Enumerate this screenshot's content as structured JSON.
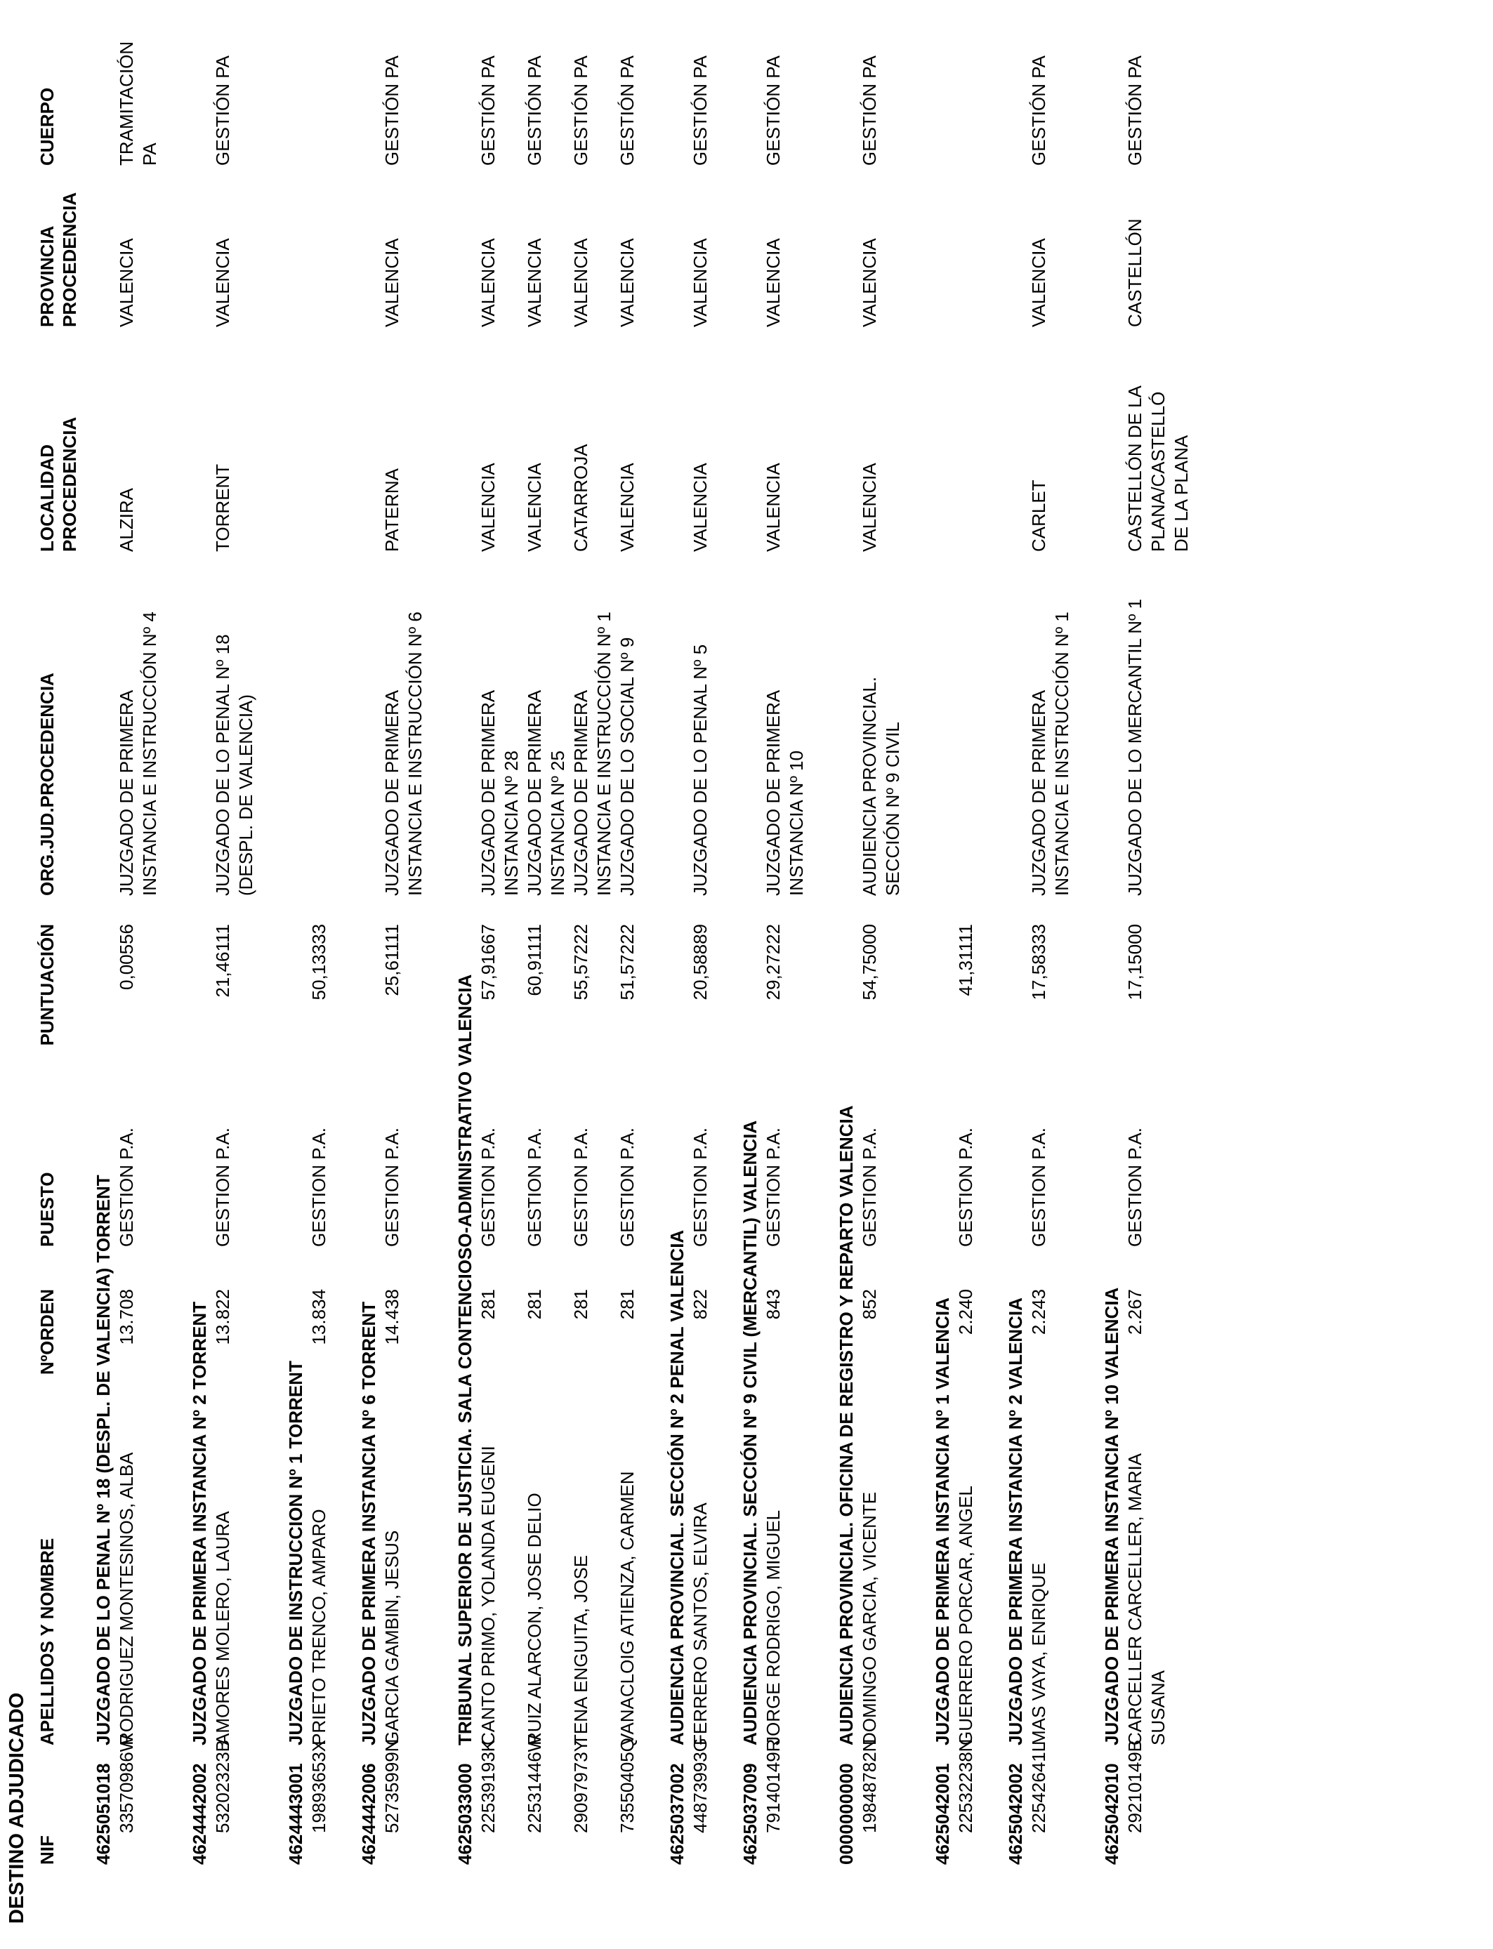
{
  "document": {
    "title": "DESTINO ADJUDICADO",
    "columns": {
      "nif": "NIF",
      "nombre": "APELLIDOS Y NOMBRE",
      "orden": "NºORDEN",
      "puesto": "PUESTO",
      "puntuacion": "PUNTUACIÓN",
      "org": "ORG.JUD.PROCEDENCIA",
      "localidad": "LOCALIDAD\nPROCEDENCIA",
      "provincia": "PROVINCIA\nPROCEDENCIA",
      "cuerpo": "CUERPO"
    },
    "groups": [
      {
        "code": "4625051018",
        "title": "JUZGADO DE LO PENAL Nº 18 (DESPL. DE VALENCIA) TORRENT",
        "rows": [
          {
            "nif": "33570986W",
            "nombre": "RODRIGUEZ MONTESINOS, ALBA",
            "orden": "13.708",
            "puesto": "GESTION P.A.",
            "puntuacion": "0,00556",
            "org": "JUZGADO DE PRIMERA\nINSTANCIA E INSTRUCCIÓN Nº 4",
            "localidad": "ALZIRA",
            "provincia": "VALENCIA",
            "cuerpo": "TRAMITACIÓN\nPA"
          }
        ]
      },
      {
        "code": "4624442002",
        "title": "JUZGADO DE PRIMERA INSTANCIA Nº 2 TORRENT",
        "rows": [
          {
            "nif": "53202323B",
            "nombre": "AMORES MOLERO, LAURA",
            "orden": "13.822",
            "puesto": "GESTION P.A.",
            "puntuacion": "21,46111",
            "org": "JUZGADO DE LO PENAL Nº 18\n(DESPL. DE VALENCIA)",
            "localidad": "TORRENT",
            "provincia": "VALENCIA",
            "cuerpo": "GESTIÓN PA"
          }
        ]
      },
      {
        "code": "4624443001",
        "title": "JUZGADO DE INSTRUCCION Nº 1 TORRENT",
        "rows": [
          {
            "nif": "19893653X",
            "nombre": "PRIETO TRENCO, AMPARO",
            "orden": "13.834",
            "puesto": "GESTION P.A.",
            "puntuacion": "50,13333",
            "org": "",
            "localidad": "",
            "provincia": "",
            "cuerpo": ""
          }
        ]
      },
      {
        "code": "4624442006",
        "title": "JUZGADO DE PRIMERA INSTANCIA Nº 6 TORRENT",
        "rows": [
          {
            "nif": "52735999N",
            "nombre": "GARCIA GAMBIN, JESUS",
            "orden": "14.438",
            "puesto": "GESTION P.A.",
            "puntuacion": "25,61111",
            "org": "JUZGADO DE PRIMERA\nINSTANCIA E INSTRUCCIÓN Nº 6",
            "localidad": "PATERNA",
            "provincia": "VALENCIA",
            "cuerpo": "GESTIÓN PA"
          }
        ]
      },
      {
        "code": "4625033000",
        "title": "TRIBUNAL SUPERIOR DE JUSTICIA. SALA CONTENCIOSO-ADMINISTRATIVO VALENCIA",
        "rows": [
          {
            "nif": "22539193K",
            "nombre": "CANTO PRIMO, YOLANDA EUGENI",
            "orden": "281",
            "puesto": "GESTION P.A.",
            "puntuacion": "57,91667",
            "org": "JUZGADO DE PRIMERA\nINSTANCIA Nº 28",
            "localidad": "VALENCIA",
            "provincia": "VALENCIA",
            "cuerpo": "GESTIÓN PA"
          },
          {
            "nif": "22531446W",
            "nombre": "RUIZ ALARCON, JOSE DELIO",
            "orden": "281",
            "puesto": "GESTION P.A.",
            "puntuacion": "60,91111",
            "org": "JUZGADO DE PRIMERA\nINSTANCIA Nº 25",
            "localidad": "VALENCIA",
            "provincia": "VALENCIA",
            "cuerpo": "GESTIÓN PA"
          },
          {
            "nif": "29097973Y",
            "nombre": "TENA ENGUITA, JOSE",
            "orden": "281",
            "puesto": "GESTION P.A.",
            "puntuacion": "55,57222",
            "org": "JUZGADO DE PRIMERA\nINSTANCIA E INSTRUCCIÓN Nº 1",
            "localidad": "CATARROJA",
            "provincia": "VALENCIA",
            "cuerpo": "GESTIÓN PA"
          },
          {
            "nif": "73550405Q",
            "nombre": "VANACLOIG ATIENZA, CARMEN",
            "orden": "281",
            "puesto": "GESTION P.A.",
            "puntuacion": "51,57222",
            "org": "JUZGADO DE LO SOCIAL Nº 9",
            "localidad": "VALENCIA",
            "provincia": "VALENCIA",
            "cuerpo": "GESTIÓN PA"
          }
        ]
      },
      {
        "code": "4625037002",
        "title": "AUDIENCIA PROVINCIAL. SECCIÓN Nº 2 PENAL VALENCIA",
        "rows": [
          {
            "nif": "44873993G",
            "nombre": "FERRERO SANTOS, ELVIRA",
            "orden": "822",
            "puesto": "GESTION P.A.",
            "puntuacion": "20,58889",
            "org": "JUZGADO DE LO PENAL Nº 5",
            "localidad": "VALENCIA",
            "provincia": "VALENCIA",
            "cuerpo": "GESTIÓN PA"
          }
        ]
      },
      {
        "code": "4625037009",
        "title": "AUDIENCIA PROVINCIAL. SECCIÓN Nº 9 CIVIL (MERCANTIL) VALENCIA",
        "rows": [
          {
            "nif": "79140149R",
            "nombre": "JORGE RODRIGO, MIGUEL",
            "orden": "843",
            "puesto": "GESTION P.A.",
            "puntuacion": "29,27222",
            "org": "JUZGADO DE PRIMERA\nINSTANCIA Nº 10",
            "localidad": "VALENCIA",
            "provincia": "VALENCIA",
            "cuerpo": "GESTIÓN PA"
          }
        ]
      },
      {
        "code": "0000000000",
        "title": "AUDIENCIA PROVINCIAL. OFICINA DE REGISTRO Y REPARTO VALENCIA",
        "rows": [
          {
            "nif": "19848782N",
            "nombre": "DOMINGO GARCIA, VICENTE",
            "orden": "852",
            "puesto": "GESTION P.A.",
            "puntuacion": "54,75000",
            "org": "AUDIENCIA PROVINCIAL.\nSECCIÓN Nº 9 CIVIL",
            "localidad": "VALENCIA",
            "provincia": "VALENCIA",
            "cuerpo": "GESTIÓN PA"
          }
        ]
      },
      {
        "code": "4625042001",
        "title": "JUZGADO DE PRIMERA INSTANCIA Nº 1 VALENCIA",
        "rows": [
          {
            "nif": "22532238N",
            "nombre": "GUERRERO PORCAR, ANGEL",
            "orden": "2.240",
            "puesto": "GESTION P.A.",
            "puntuacion": "41,31111",
            "org": "",
            "localidad": "",
            "provincia": "",
            "cuerpo": ""
          }
        ]
      },
      {
        "code": "4625042002",
        "title": "JUZGADO DE PRIMERA INSTANCIA Nº 2 VALENCIA",
        "rows": [
          {
            "nif": "22542641L",
            "nombre": "MAS VAYA, ENRIQUE",
            "orden": "2.243",
            "puesto": "GESTION P.A.",
            "puntuacion": "17,58333",
            "org": "JUZGADO DE PRIMERA\nINSTANCIA E INSTRUCCIÓN Nº 1",
            "localidad": "CARLET",
            "provincia": "VALENCIA",
            "cuerpo": "GESTIÓN PA"
          }
        ]
      },
      {
        "code": "4625042010",
        "title": "JUZGADO DE PRIMERA INSTANCIA Nº 10 VALENCIA",
        "rows": [
          {
            "nif": "29210149B",
            "nombre": "CARCELLER CARCELLER, MARIA\nSUSANA",
            "orden": "2.267",
            "puesto": "GESTION P.A.",
            "puntuacion": "17,15000",
            "org": "JUZGADO DE LO MERCANTIL Nº 1",
            "localidad": "CASTELLÓN DE LA\nPLANA/CASTELLÓ\nDE LA PLANA",
            "provincia": "CASTELLÓN",
            "cuerpo": "GESTIÓN PA"
          }
        ]
      }
    ]
  }
}
